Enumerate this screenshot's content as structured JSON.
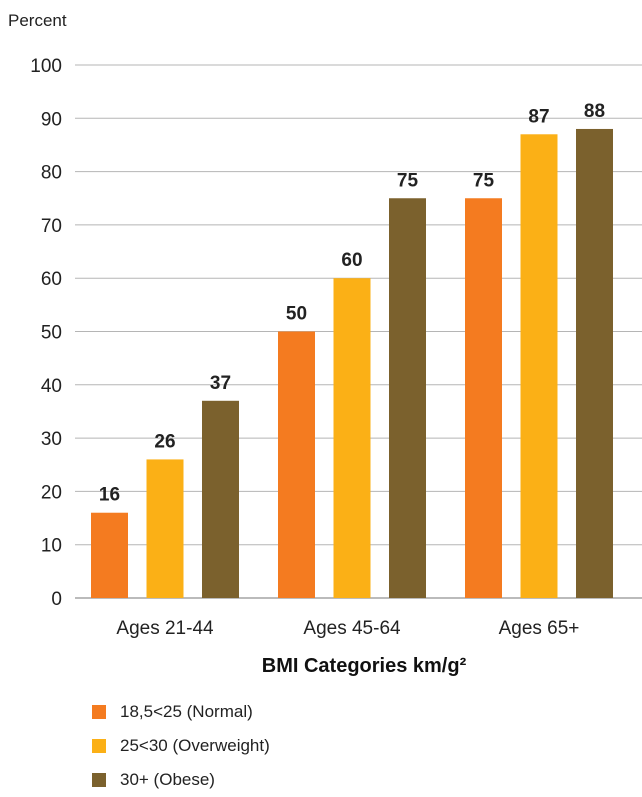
{
  "chart_data": {
    "type": "bar",
    "ylabel": "Percent",
    "xlabel": "BMI Categories km/g²",
    "ylim": [
      0,
      100
    ],
    "yticks": [
      0,
      10,
      20,
      30,
      40,
      50,
      60,
      70,
      80,
      90,
      100
    ],
    "grid": true,
    "categories": [
      "Ages 21-44",
      "Ages 45-64",
      "Ages 65+"
    ],
    "series": [
      {
        "name": "18,5<25 (Normal)",
        "color": "#f47b20",
        "values": [
          16,
          50,
          75
        ]
      },
      {
        "name": "25<30 (Overweight)",
        "color": "#fbb016",
        "values": [
          26,
          60,
          87
        ]
      },
      {
        "name": "30+ (Obese)",
        "color": "#7b612d",
        "values": [
          37,
          75,
          88
        ]
      }
    ],
    "legend_position": "bottom-left"
  }
}
